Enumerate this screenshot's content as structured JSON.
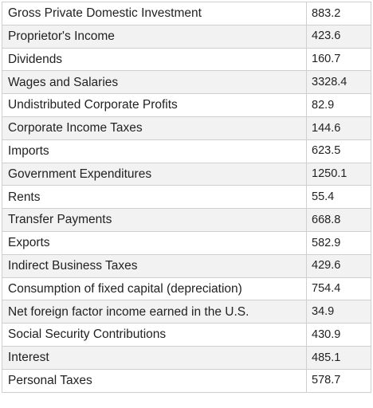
{
  "table": {
    "rows": [
      {
        "label": "Gross Private Domestic Investment",
        "value": "883.2"
      },
      {
        "label": "Proprietor's Income",
        "value": "423.6"
      },
      {
        "label": "Dividends",
        "value": "160.7"
      },
      {
        "label": "Wages and Salaries",
        "value": "3328.4"
      },
      {
        "label": "Undistributed Corporate Profits",
        "value": "82.9"
      },
      {
        "label": "Corporate Income Taxes",
        "value": "144.6"
      },
      {
        "label": "Imports",
        "value": "623.5"
      },
      {
        "label": "Government Expenditures",
        "value": "1250.1"
      },
      {
        "label": "Rents",
        "value": "55.4"
      },
      {
        "label": "Transfer Payments",
        "value": "668.8"
      },
      {
        "label": "Exports",
        "value": "582.9"
      },
      {
        "label": "Indirect Business Taxes",
        "value": "429.6"
      },
      {
        "label": "Consumption of fixed capital (depreciation)",
        "value": "754.4"
      },
      {
        "label": "Net foreign factor income earned in the U.S.",
        "value": "34.9"
      },
      {
        "label": "Social Security Contributions",
        "value": "430.9"
      },
      {
        "label": "Interest",
        "value": "485.1"
      },
      {
        "label": "Personal Taxes",
        "value": "578.7"
      }
    ]
  }
}
